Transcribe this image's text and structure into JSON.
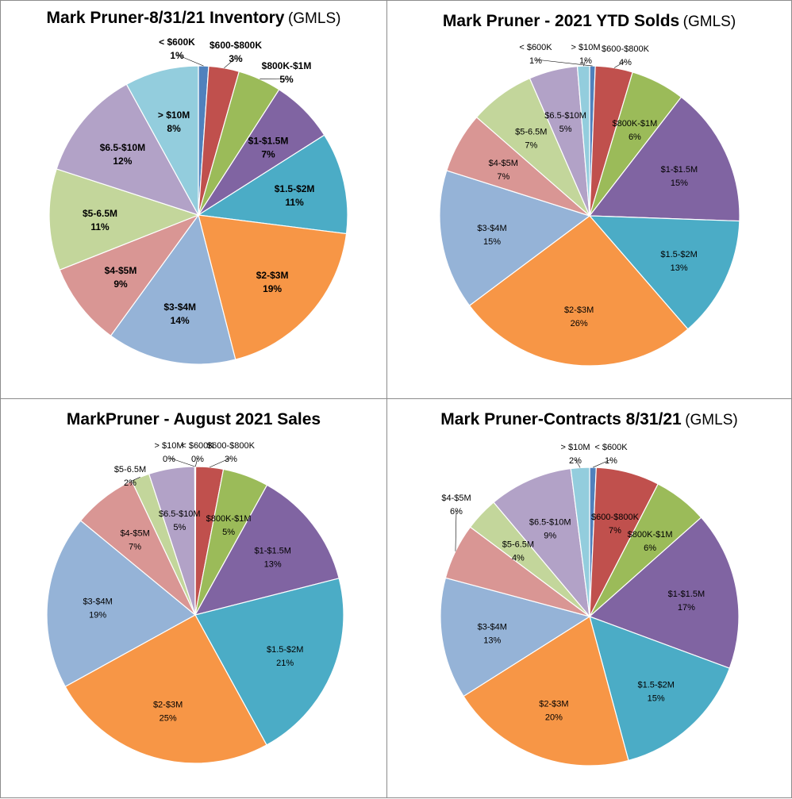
{
  "chart_data": [
    {
      "type": "pie",
      "title": "Mark Pruner-8/31/21 Inventory",
      "subtitle": "(GMLS)",
      "slices": [
        {
          "label": "< $600K",
          "pct": "1%",
          "value": 1.1,
          "color": "#4f81bd"
        },
        {
          "label": "$600-$800K",
          "pct": "3%",
          "value": 3.3,
          "color": "#c0504d"
        },
        {
          "label": "$800K-$1M",
          "pct": "5%",
          "value": 4.7,
          "color": "#9bbb59"
        },
        {
          "label": "$1-$1.5M",
          "pct": "7%",
          "value": 6.9,
          "color": "#8064a2"
        },
        {
          "label": "$1.5-$2M",
          "pct": "11%",
          "value": 11.0,
          "color": "#4bacc6"
        },
        {
          "label": "$2-$3M",
          "pct": "19%",
          "value": 19.0,
          "color": "#f79646"
        },
        {
          "label": "$3-$4M",
          "pct": "14%",
          "value": 14.0,
          "color": "#95b3d7"
        },
        {
          "label": "$4-$5M",
          "pct": "9%",
          "value": 9.0,
          "color": "#d99694"
        },
        {
          "label": "$5-6.5M",
          "pct": "11%",
          "value": 11.0,
          "color": "#c3d69b"
        },
        {
          "label": "$6.5-$10M",
          "pct": "12%",
          "value": 12.0,
          "color": "#b2a2c7"
        },
        {
          "label": "> $10M",
          "pct": "8%",
          "value": 8.0,
          "color": "#93cddd"
        }
      ]
    },
    {
      "type": "pie",
      "title": "Mark Pruner - 2021 YTD Solds",
      "subtitle": "(GMLS)",
      "slices": [
        {
          "label": "< $600K",
          "pct": "1%",
          "value": 0.6,
          "color": "#4f81bd"
        },
        {
          "label": "$600-$800K",
          "pct": "4%",
          "value": 4.0,
          "color": "#c0504d"
        },
        {
          "label": "$800K-$1M",
          "pct": "6%",
          "value": 5.8,
          "color": "#9bbb59"
        },
        {
          "label": "$1-$1.5M",
          "pct": "15%",
          "value": 15.0,
          "color": "#8064a2"
        },
        {
          "label": "$1.5-$2M",
          "pct": "13%",
          "value": 13.0,
          "color": "#4bacc6"
        },
        {
          "label": "$2-$3M",
          "pct": "26%",
          "value": 26.0,
          "color": "#f79646"
        },
        {
          "label": "$3-$4M",
          "pct": "15%",
          "value": 15.0,
          "color": "#95b3d7"
        },
        {
          "label": "$4-$5M",
          "pct": "7%",
          "value": 6.5,
          "color": "#d99694"
        },
        {
          "label": "$5-6.5M",
          "pct": "7%",
          "value": 7.0,
          "color": "#c3d69b"
        },
        {
          "label": "$6.5-$10M",
          "pct": "5%",
          "value": 5.2,
          "color": "#b2a2c7"
        },
        {
          "label": "> $10M",
          "pct": "1%",
          "value": 1.3,
          "color": "#93cddd"
        }
      ]
    },
    {
      "type": "pie",
      "title": "MarkPruner -  August 2021 Sales",
      "subtitle": "",
      "slices": [
        {
          "label": "< $600K",
          "pct": "0%",
          "value": 0.05,
          "color": "#4f81bd"
        },
        {
          "label": "$600-$800K",
          "pct": "3%",
          "value": 3.0,
          "color": "#c0504d"
        },
        {
          "label": "$800K-$1M",
          "pct": "5%",
          "value": 5.0,
          "color": "#9bbb59"
        },
        {
          "label": "$1-$1.5M",
          "pct": "13%",
          "value": 13.0,
          "color": "#8064a2"
        },
        {
          "label": "$1.5-$2M",
          "pct": "21%",
          "value": 21.0,
          "color": "#4bacc6"
        },
        {
          "label": "$2-$3M",
          "pct": "25%",
          "value": 25.0,
          "color": "#f79646"
        },
        {
          "label": "$3-$4M",
          "pct": "19%",
          "value": 19.0,
          "color": "#95b3d7"
        },
        {
          "label": "$4-$5M",
          "pct": "7%",
          "value": 7.0,
          "color": "#d99694"
        },
        {
          "label": "$5-6.5M",
          "pct": "2%",
          "value": 2.0,
          "color": "#c3d69b"
        },
        {
          "label": "$6.5-$10M",
          "pct": "5%",
          "value": 5.0,
          "color": "#b2a2c7"
        },
        {
          "label": "> $10M",
          "pct": "0%",
          "value": 0.05,
          "color": "#93cddd"
        }
      ]
    },
    {
      "type": "pie",
      "title": "Mark Pruner-Contracts 8/31/21",
      "subtitle": "(GMLS)",
      "slices": [
        {
          "label": "< $600K",
          "pct": "1%",
          "value": 0.7,
          "color": "#4f81bd"
        },
        {
          "label": "$600-$800K",
          "pct": "7%",
          "value": 6.8,
          "color": "#c0504d"
        },
        {
          "label": "$800K-$1M",
          "pct": "6%",
          "value": 5.8,
          "color": "#9bbb59"
        },
        {
          "label": "$1-$1.5M",
          "pct": "17%",
          "value": 17.0,
          "color": "#8064a2"
        },
        {
          "label": "$1.5-$2M",
          "pct": "15%",
          "value": 15.0,
          "color": "#4bacc6"
        },
        {
          "label": "$2-$3M",
          "pct": "20%",
          "value": 20.0,
          "color": "#f79646"
        },
        {
          "label": "$3-$4M",
          "pct": "13%",
          "value": 13.0,
          "color": "#95b3d7"
        },
        {
          "label": "$4-$5M",
          "pct": "6%",
          "value": 6.0,
          "color": "#d99694"
        },
        {
          "label": "$5-6.5M",
          "pct": "4%",
          "value": 3.6,
          "color": "#c3d69b"
        },
        {
          "label": "$6.5-$10M",
          "pct": "9%",
          "value": 9.0,
          "color": "#b2a2c7"
        },
        {
          "label": "> $10M",
          "pct": "2%",
          "value": 2.0,
          "color": "#93cddd"
        }
      ]
    }
  ]
}
